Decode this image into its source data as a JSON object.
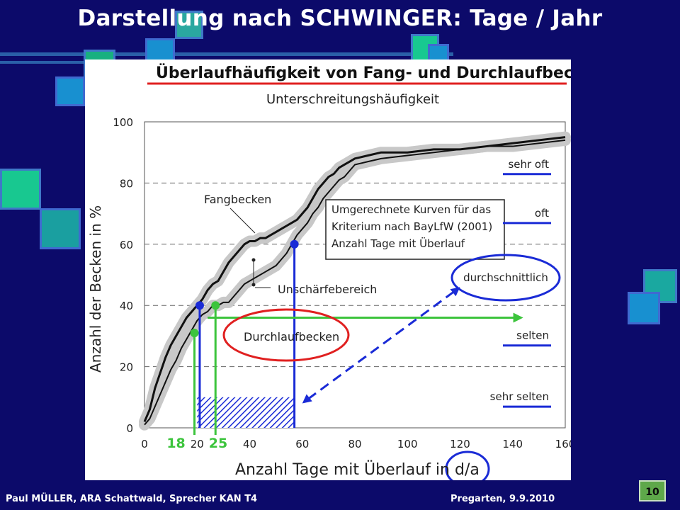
{
  "slide": {
    "title": "Darstellung nach SCHWINGER: Tage / Jahr",
    "footer_left": "Paul MÜLLER, ARA Schattwald, Sprecher KAN T4",
    "footer_right": "Pregarten, 9.9.2010",
    "page_number": "10"
  },
  "colors": {
    "background": "#0c0a6a",
    "accent_red": "#e02020",
    "accent_blue": "#1a2bd6",
    "accent_green": "#3cc43c",
    "band_gray": "#c8c8c8"
  },
  "chart_data": {
    "type": "line",
    "title": "Überlaufhäufigkeit  von Fang- und Durchlaufbecken",
    "subtitle": "Unterschreitungshäufigkeit",
    "xlabel": "Anzahl Tage mit Überlauf in d/a",
    "ylabel": "Anzahl der Becken in %",
    "xlim": [
      0,
      160
    ],
    "ylim": [
      0,
      100
    ],
    "x_ticks": [
      0,
      20,
      40,
      60,
      80,
      100,
      120,
      140,
      160
    ],
    "y_ticks": [
      0,
      20,
      40,
      60,
      80,
      100
    ],
    "grid": "horizontal-dashed",
    "series": [
      {
        "name": "Fangbecken",
        "x": [
          0,
          2,
          4,
          6,
          8,
          10,
          12,
          14,
          16,
          18,
          20,
          22,
          24,
          26,
          28,
          30,
          32,
          34,
          36,
          38,
          40,
          42,
          44,
          46,
          48,
          50,
          52,
          54,
          56,
          58,
          60,
          62,
          64,
          66,
          68,
          70,
          72,
          74,
          76,
          78,
          80,
          85,
          90,
          100,
          110,
          120,
          130,
          140,
          150,
          160
        ],
        "y": [
          2,
          6,
          13,
          18,
          23,
          27,
          30,
          33,
          36,
          38,
          40,
          42,
          45,
          47,
          48,
          51,
          54,
          56,
          58,
          60,
          61,
          61,
          62,
          62,
          63,
          64,
          65,
          66,
          67,
          68,
          70,
          72,
          75,
          78,
          80,
          82,
          83,
          85,
          86,
          87,
          88,
          89,
          90,
          90,
          91,
          91,
          92,
          93,
          94,
          95
        ]
      },
      {
        "name": "Durchlaufbecken",
        "x": [
          0,
          2,
          4,
          6,
          8,
          10,
          12,
          14,
          16,
          18,
          20,
          22,
          24,
          26,
          28,
          30,
          32,
          34,
          36,
          38,
          40,
          42,
          44,
          46,
          48,
          50,
          52,
          54,
          56,
          58,
          60,
          62,
          64,
          66,
          68,
          70,
          72,
          74,
          76,
          78,
          80,
          85,
          90,
          100,
          110,
          120,
          130,
          140,
          150,
          160
        ],
        "y": [
          1,
          3,
          7,
          11,
          15,
          19,
          22,
          26,
          29,
          32,
          35,
          37,
          38,
          40,
          40,
          41,
          41,
          43,
          45,
          47,
          48,
          49,
          50,
          51,
          52,
          53,
          55,
          57,
          60,
          63,
          65,
          67,
          70,
          72,
          75,
          77,
          79,
          81,
          82,
          84,
          86,
          87,
          88,
          89,
          90,
          91,
          92,
          92,
          93,
          94
        ]
      }
    ],
    "inner_labels": {
      "fangbecken": "Fangbecken",
      "durchlaufbecken": "Durchlaufbecken",
      "unschaerfe": "Unschärfebereich",
      "legend_box": [
        "Umgerechnete Kurven für das",
        "Kriterium nach BayLfW (2001)",
        "Anzahl Tage mit Überlauf"
      ]
    },
    "categories_right": [
      {
        "label": "sehr oft",
        "y": 85
      },
      {
        "label": "oft",
        "y": 69
      },
      {
        "label": "durchschnittlich",
        "y": 50
      },
      {
        "label": "selten",
        "y": 29
      },
      {
        "label": "sehr selten",
        "y": 9
      }
    ],
    "annotations": {
      "green_x_labels": [
        {
          "text": "18",
          "x": 12
        },
        {
          "text": "25",
          "x": 28
        }
      ],
      "blue_points": [
        {
          "x": 21,
          "y": 40
        },
        {
          "x": 57,
          "y": 60
        }
      ],
      "green_points": [
        {
          "x": 19,
          "y": 31
        },
        {
          "x": 27,
          "y": 40
        }
      ],
      "green_arrow": {
        "y": 36,
        "x_start": 24,
        "x_end": 144
      },
      "hatch_region": {
        "x_start": 20,
        "x_end": 57,
        "y_start": 0,
        "y_end": 10
      }
    }
  }
}
